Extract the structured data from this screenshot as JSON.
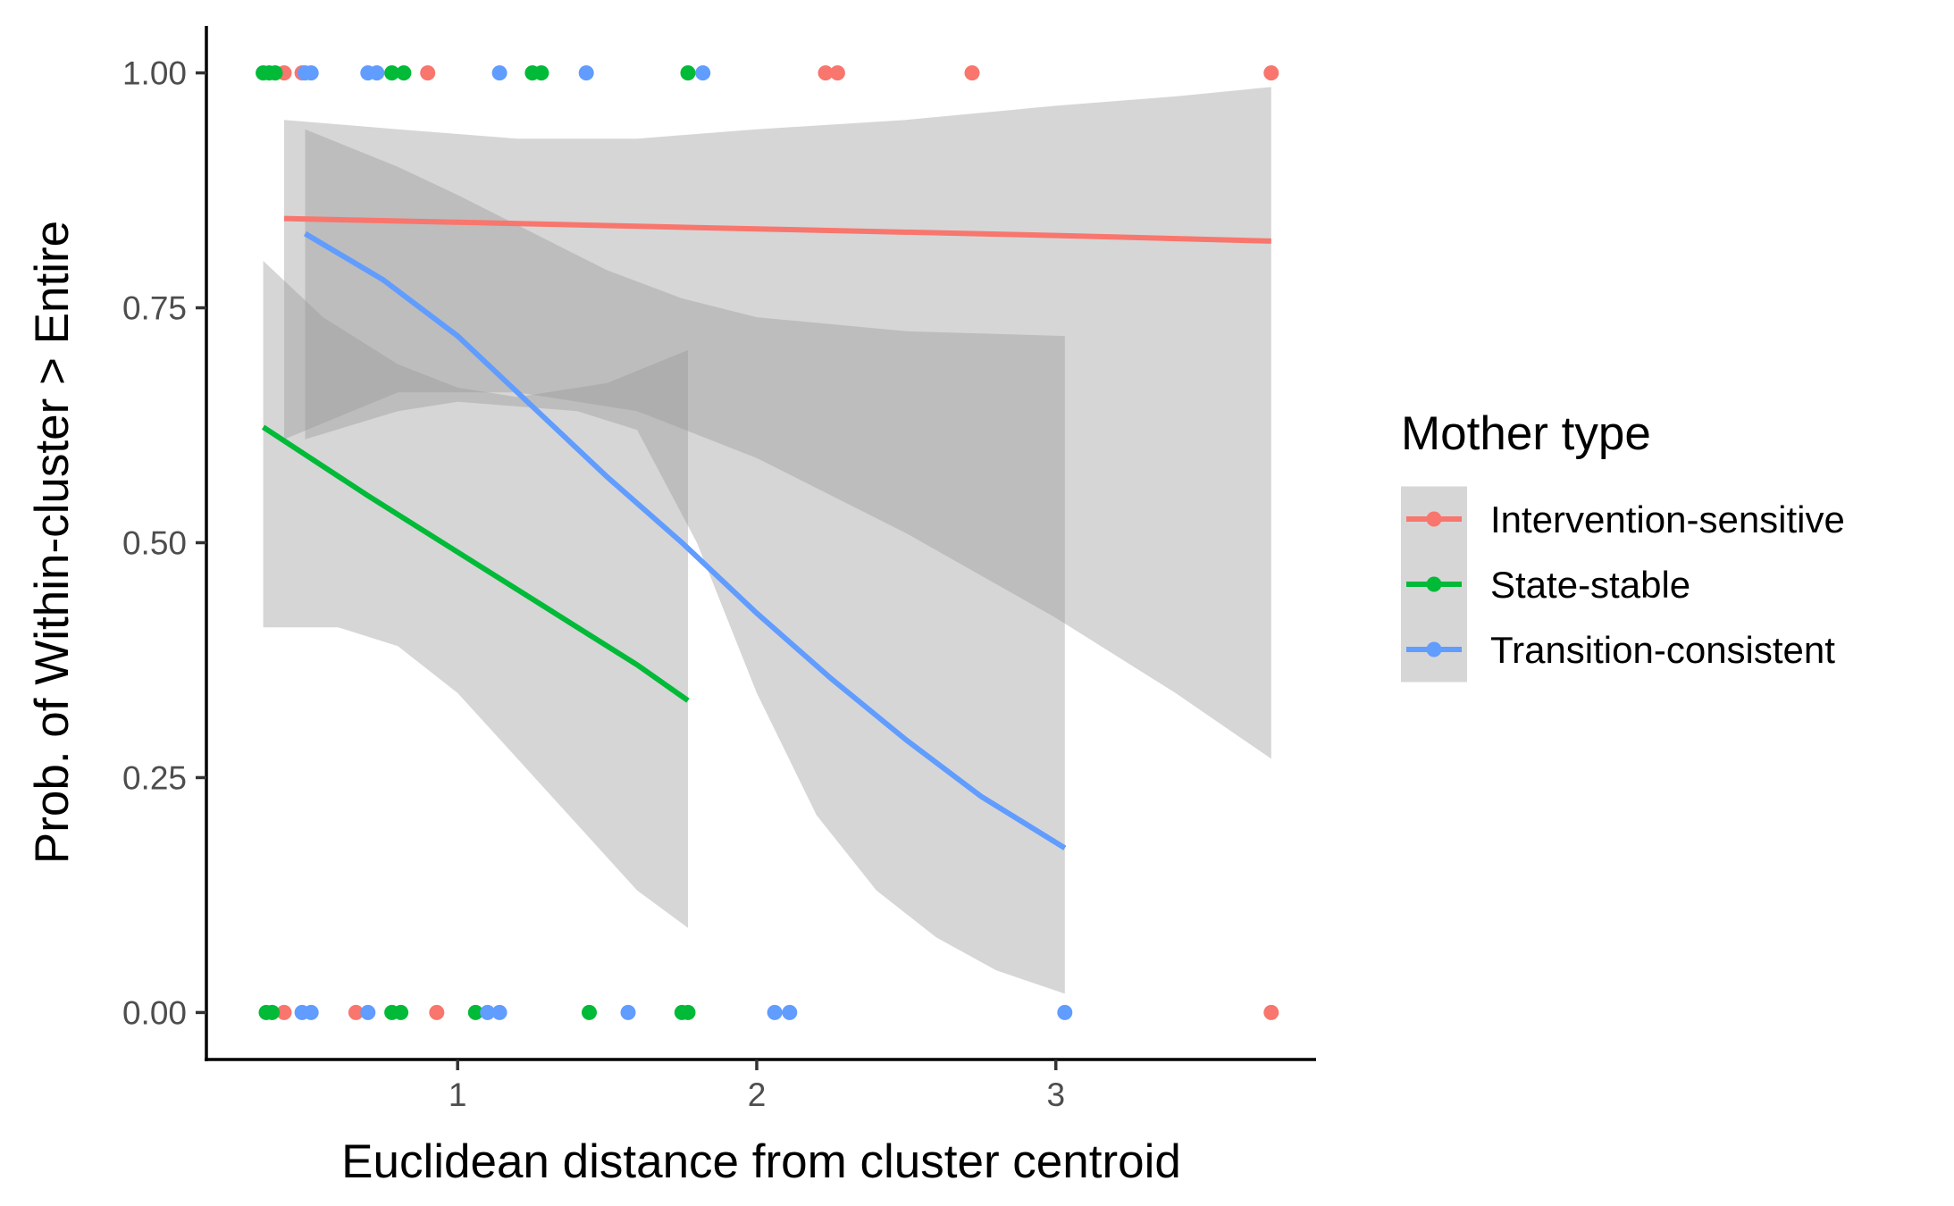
{
  "chart_data": {
    "type": "scatter",
    "title": "",
    "xlabel": "Euclidean distance from cluster centroid",
    "ylabel": "Prob. of Within-cluster > Entire",
    "xlim": [
      0.16,
      3.87
    ],
    "ylim": [
      -0.05,
      1.05
    ],
    "x_ticks": [
      1,
      2,
      3
    ],
    "x_tick_labels": [
      "1",
      "2",
      "3"
    ],
    "y_ticks": [
      0,
      0.25,
      0.5,
      0.75,
      1
    ],
    "y_tick_labels": [
      "0.00",
      "0.25",
      "0.50",
      "0.75",
      "1.00"
    ],
    "grid": false,
    "legend": {
      "title": "Mother type",
      "position": "right",
      "entries": [
        "Intervention-sensitive",
        "State-stable",
        "Transition-consistent"
      ]
    },
    "series": [
      {
        "name": "Intervention-sensitive",
        "color": "#F8766D",
        "points": [
          {
            "x": 0.42,
            "y": 1
          },
          {
            "x": 0.48,
            "y": 1
          },
          {
            "x": 0.9,
            "y": 1
          },
          {
            "x": 2.23,
            "y": 1
          },
          {
            "x": 2.27,
            "y": 1
          },
          {
            "x": 2.72,
            "y": 1
          },
          {
            "x": 3.72,
            "y": 1
          },
          {
            "x": 0.42,
            "y": 0
          },
          {
            "x": 0.66,
            "y": 0
          },
          {
            "x": 0.93,
            "y": 0
          },
          {
            "x": 3.72,
            "y": 0
          }
        ],
        "fit": [
          {
            "x": 0.42,
            "y": 0.845
          },
          {
            "x": 1.0,
            "y": 0.841
          },
          {
            "x": 2.0,
            "y": 0.834
          },
          {
            "x": 3.0,
            "y": 0.827
          },
          {
            "x": 3.72,
            "y": 0.821
          }
        ],
        "ci_lower": [
          {
            "x": 0.42,
            "y": 0.61
          },
          {
            "x": 0.8,
            "y": 0.66
          },
          {
            "x": 1.2,
            "y": 0.66
          },
          {
            "x": 1.6,
            "y": 0.64
          },
          {
            "x": 2.0,
            "y": 0.59
          },
          {
            "x": 2.5,
            "y": 0.51
          },
          {
            "x": 3.0,
            "y": 0.42
          },
          {
            "x": 3.4,
            "y": 0.34
          },
          {
            "x": 3.72,
            "y": 0.27
          }
        ],
        "ci_upper": [
          {
            "x": 0.42,
            "y": 0.95
          },
          {
            "x": 0.8,
            "y": 0.94
          },
          {
            "x": 1.2,
            "y": 0.93
          },
          {
            "x": 1.6,
            "y": 0.93
          },
          {
            "x": 2.0,
            "y": 0.94
          },
          {
            "x": 2.5,
            "y": 0.95
          },
          {
            "x": 3.0,
            "y": 0.965
          },
          {
            "x": 3.4,
            "y": 0.975
          },
          {
            "x": 3.72,
            "y": 0.985
          }
        ]
      },
      {
        "name": "State-stable",
        "color": "#00BA38",
        "points": [
          {
            "x": 0.35,
            "y": 1
          },
          {
            "x": 0.37,
            "y": 1
          },
          {
            "x": 0.39,
            "y": 1
          },
          {
            "x": 0.78,
            "y": 1
          },
          {
            "x": 0.82,
            "y": 1
          },
          {
            "x": 1.25,
            "y": 1
          },
          {
            "x": 1.28,
            "y": 1
          },
          {
            "x": 1.77,
            "y": 1
          },
          {
            "x": 0.36,
            "y": 0
          },
          {
            "x": 0.38,
            "y": 0
          },
          {
            "x": 0.78,
            "y": 0
          },
          {
            "x": 0.81,
            "y": 0
          },
          {
            "x": 1.06,
            "y": 0
          },
          {
            "x": 1.44,
            "y": 0
          },
          {
            "x": 1.75,
            "y": 0
          },
          {
            "x": 1.77,
            "y": 0
          }
        ],
        "fit": [
          {
            "x": 0.35,
            "y": 0.623
          },
          {
            "x": 0.7,
            "y": 0.55
          },
          {
            "x": 1.0,
            "y": 0.49
          },
          {
            "x": 1.3,
            "y": 0.43
          },
          {
            "x": 1.6,
            "y": 0.37
          },
          {
            "x": 1.77,
            "y": 0.332
          }
        ],
        "ci_lower": [
          {
            "x": 0.35,
            "y": 0.41
          },
          {
            "x": 0.6,
            "y": 0.41
          },
          {
            "x": 0.8,
            "y": 0.39
          },
          {
            "x": 1.0,
            "y": 0.34
          },
          {
            "x": 1.2,
            "y": 0.27
          },
          {
            "x": 1.4,
            "y": 0.2
          },
          {
            "x": 1.6,
            "y": 0.13
          },
          {
            "x": 1.77,
            "y": 0.09
          }
        ],
        "ci_upper": [
          {
            "x": 0.35,
            "y": 0.8
          },
          {
            "x": 0.55,
            "y": 0.74
          },
          {
            "x": 0.8,
            "y": 0.69
          },
          {
            "x": 1.0,
            "y": 0.665
          },
          {
            "x": 1.2,
            "y": 0.655
          },
          {
            "x": 1.5,
            "y": 0.67
          },
          {
            "x": 1.77,
            "y": 0.705
          }
        ]
      },
      {
        "name": "Transition-consistent",
        "color": "#619CFF",
        "points": [
          {
            "x": 0.49,
            "y": 1
          },
          {
            "x": 0.51,
            "y": 1
          },
          {
            "x": 0.7,
            "y": 1
          },
          {
            "x": 0.73,
            "y": 1
          },
          {
            "x": 1.14,
            "y": 1
          },
          {
            "x": 1.43,
            "y": 1
          },
          {
            "x": 1.82,
            "y": 1
          },
          {
            "x": 0.48,
            "y": 0
          },
          {
            "x": 0.51,
            "y": 0
          },
          {
            "x": 0.7,
            "y": 0
          },
          {
            "x": 1.1,
            "y": 0
          },
          {
            "x": 1.14,
            "y": 0
          },
          {
            "x": 1.57,
            "y": 0
          },
          {
            "x": 2.06,
            "y": 0
          },
          {
            "x": 2.11,
            "y": 0
          },
          {
            "x": 3.03,
            "y": 0
          }
        ],
        "fit": [
          {
            "x": 0.49,
            "y": 0.829
          },
          {
            "x": 0.75,
            "y": 0.78
          },
          {
            "x": 1.0,
            "y": 0.72
          },
          {
            "x": 1.25,
            "y": 0.645
          },
          {
            "x": 1.5,
            "y": 0.57
          },
          {
            "x": 1.75,
            "y": 0.5
          },
          {
            "x": 2.0,
            "y": 0.425
          },
          {
            "x": 2.25,
            "y": 0.355
          },
          {
            "x": 2.5,
            "y": 0.29
          },
          {
            "x": 2.75,
            "y": 0.23
          },
          {
            "x": 3.03,
            "y": 0.175
          }
        ],
        "ci_lower": [
          {
            "x": 0.49,
            "y": 0.61
          },
          {
            "x": 0.8,
            "y": 0.64
          },
          {
            "x": 1.0,
            "y": 0.65
          },
          {
            "x": 1.4,
            "y": 0.64
          },
          {
            "x": 1.6,
            "y": 0.62
          },
          {
            "x": 1.8,
            "y": 0.5
          },
          {
            "x": 2.0,
            "y": 0.34
          },
          {
            "x": 2.2,
            "y": 0.21
          },
          {
            "x": 2.4,
            "y": 0.13
          },
          {
            "x": 2.6,
            "y": 0.08
          },
          {
            "x": 2.8,
            "y": 0.045
          },
          {
            "x": 3.03,
            "y": 0.02
          }
        ],
        "ci_upper": [
          {
            "x": 0.49,
            "y": 0.94
          },
          {
            "x": 0.8,
            "y": 0.9
          },
          {
            "x": 1.0,
            "y": 0.87
          },
          {
            "x": 1.25,
            "y": 0.83
          },
          {
            "x": 1.5,
            "y": 0.79
          },
          {
            "x": 1.75,
            "y": 0.76
          },
          {
            "x": 2.0,
            "y": 0.74
          },
          {
            "x": 2.5,
            "y": 0.725
          },
          {
            "x": 3.03,
            "y": 0.72
          }
        ]
      }
    ]
  }
}
